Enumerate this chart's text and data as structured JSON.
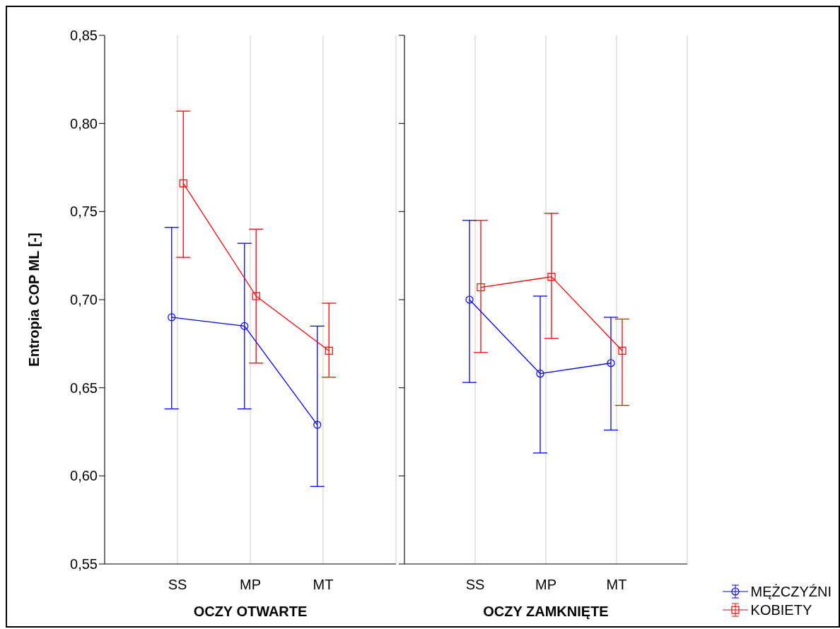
{
  "chart_data": [
    {
      "type": "line",
      "ylabel": "Entropia COP ML [-]",
      "xlabel": "OCZY OTWARTE",
      "categories": [
        "SS",
        "MP",
        "MT"
      ],
      "ylim": [
        0.55,
        0.85
      ],
      "yticks": [
        {
          "value": 0.55,
          "label": "0,55"
        },
        {
          "value": 0.6,
          "label": "0,60"
        },
        {
          "value": 0.65,
          "label": "0,65"
        },
        {
          "value": 0.7,
          "label": "0,70"
        },
        {
          "value": 0.75,
          "label": "0,75"
        },
        {
          "value": 0.8,
          "label": "0,80"
        },
        {
          "value": 0.85,
          "label": "0,85"
        }
      ],
      "grid": "x",
      "legend": "bottom right",
      "series": [
        {
          "name": "MĘŻCZYŹNI",
          "color": "#0000ff",
          "marker": "circle",
          "values": [
            0.69,
            0.685,
            0.629
          ],
          "errors": [
            [
              0.638,
              0.741
            ],
            [
              0.638,
              0.732
            ],
            [
              0.594,
              0.685
            ]
          ]
        },
        {
          "name": "KOBIETY",
          "color": "#ff0000",
          "marker": "square",
          "values": [
            0.766,
            0.702,
            0.671
          ],
          "errors": [
            [
              0.724,
              0.807
            ],
            [
              0.664,
              0.74
            ],
            [
              0.656,
              0.698
            ]
          ]
        }
      ]
    },
    {
      "type": "line",
      "xlabel": "OCZY ZAMKNIĘTE",
      "categories": [
        "SS",
        "MP",
        "MT"
      ],
      "ylim": [
        0.55,
        0.85
      ],
      "yticks": [
        {
          "value": 0.55,
          "label": null
        },
        {
          "value": 0.6,
          "label": null
        },
        {
          "value": 0.65,
          "label": null
        },
        {
          "value": 0.7,
          "label": null
        },
        {
          "value": 0.75,
          "label": null
        },
        {
          "value": 0.8,
          "label": null
        },
        {
          "value": 0.85,
          "label": null
        }
      ],
      "tick_labels": "x",
      "grid": "x",
      "series": [
        {
          "color": "#0000ff",
          "marker": "circle",
          "values": [
            0.7,
            0.658,
            0.664
          ],
          "errors": [
            [
              0.653,
              0.745
            ],
            [
              0.613,
              0.702
            ],
            [
              0.626,
              0.69
            ]
          ]
        },
        {
          "color": "#ff0000",
          "marker": "square",
          "values": [
            0.707,
            0.713,
            0.671
          ],
          "errors": [
            [
              0.67,
              0.745
            ],
            [
              0.678,
              0.749
            ],
            [
              0.64,
              0.689
            ]
          ]
        }
      ]
    }
  ]
}
